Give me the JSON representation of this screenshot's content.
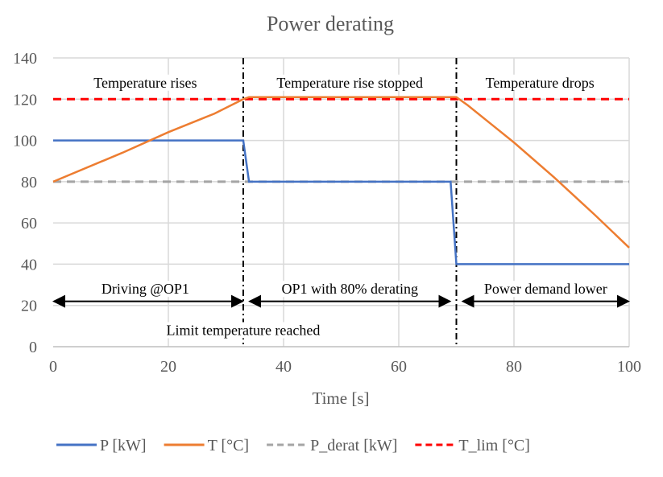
{
  "chart_data": {
    "type": "line",
    "title": "Power derating",
    "xlabel": "Time [s]",
    "ylabel": "",
    "xlim": [
      0,
      100
    ],
    "ylim": [
      0,
      140
    ],
    "xticks": [
      0,
      20,
      40,
      60,
      80,
      100
    ],
    "yticks": [
      0,
      20,
      40,
      60,
      80,
      100,
      120,
      140
    ],
    "grid": true,
    "legend_position": "bottom",
    "series": [
      {
        "name": "P [kW]",
        "color": "#4472C4",
        "dash": "solid",
        "x": [
          0,
          33,
          34,
          69,
          70,
          100
        ],
        "y": [
          100,
          100,
          80,
          80,
          40,
          40
        ]
      },
      {
        "name": "T [°C]",
        "color": "#ED7D31",
        "dash": "solid",
        "x": [
          0,
          12,
          20,
          28,
          33,
          34,
          70,
          72,
          76,
          80,
          87,
          94,
          100
        ],
        "y": [
          80,
          94,
          104,
          113,
          120,
          121,
          121,
          117,
          108,
          99,
          82,
          64,
          48
        ]
      },
      {
        "name": "P_derat [kW]",
        "color": "#A5A5A5",
        "dash": "dashed",
        "x": [
          0,
          100
        ],
        "y": [
          80,
          80
        ]
      },
      {
        "name": "T_lim [°C]",
        "color": "#FF0000",
        "dash": "dashed",
        "x": [
          0,
          100
        ],
        "y": [
          120,
          120
        ]
      }
    ],
    "vlines": [
      33,
      70
    ],
    "annotations": [
      {
        "text": "Temperature rises",
        "x": 16,
        "y": 128
      },
      {
        "text": "Temperature rise stopped",
        "x": 51.5,
        "y": 128
      },
      {
        "text": "Temperature drops",
        "x": 84.5,
        "y": 128
      },
      {
        "text": "Driving @OP1",
        "x": 16,
        "y": 28
      },
      {
        "text": "OP1 with 80% derating",
        "x": 51.5,
        "y": 28
      },
      {
        "text": "Power demand lower",
        "x": 85.5,
        "y": 28
      },
      {
        "text": "Limit temperature reached",
        "x": 33,
        "y": 8
      }
    ],
    "arrows": [
      {
        "from": 0,
        "to": 33,
        "y": 22
      },
      {
        "from": 34,
        "to": 69,
        "y": 22
      },
      {
        "from": 71,
        "to": 100,
        "y": 22
      }
    ]
  }
}
